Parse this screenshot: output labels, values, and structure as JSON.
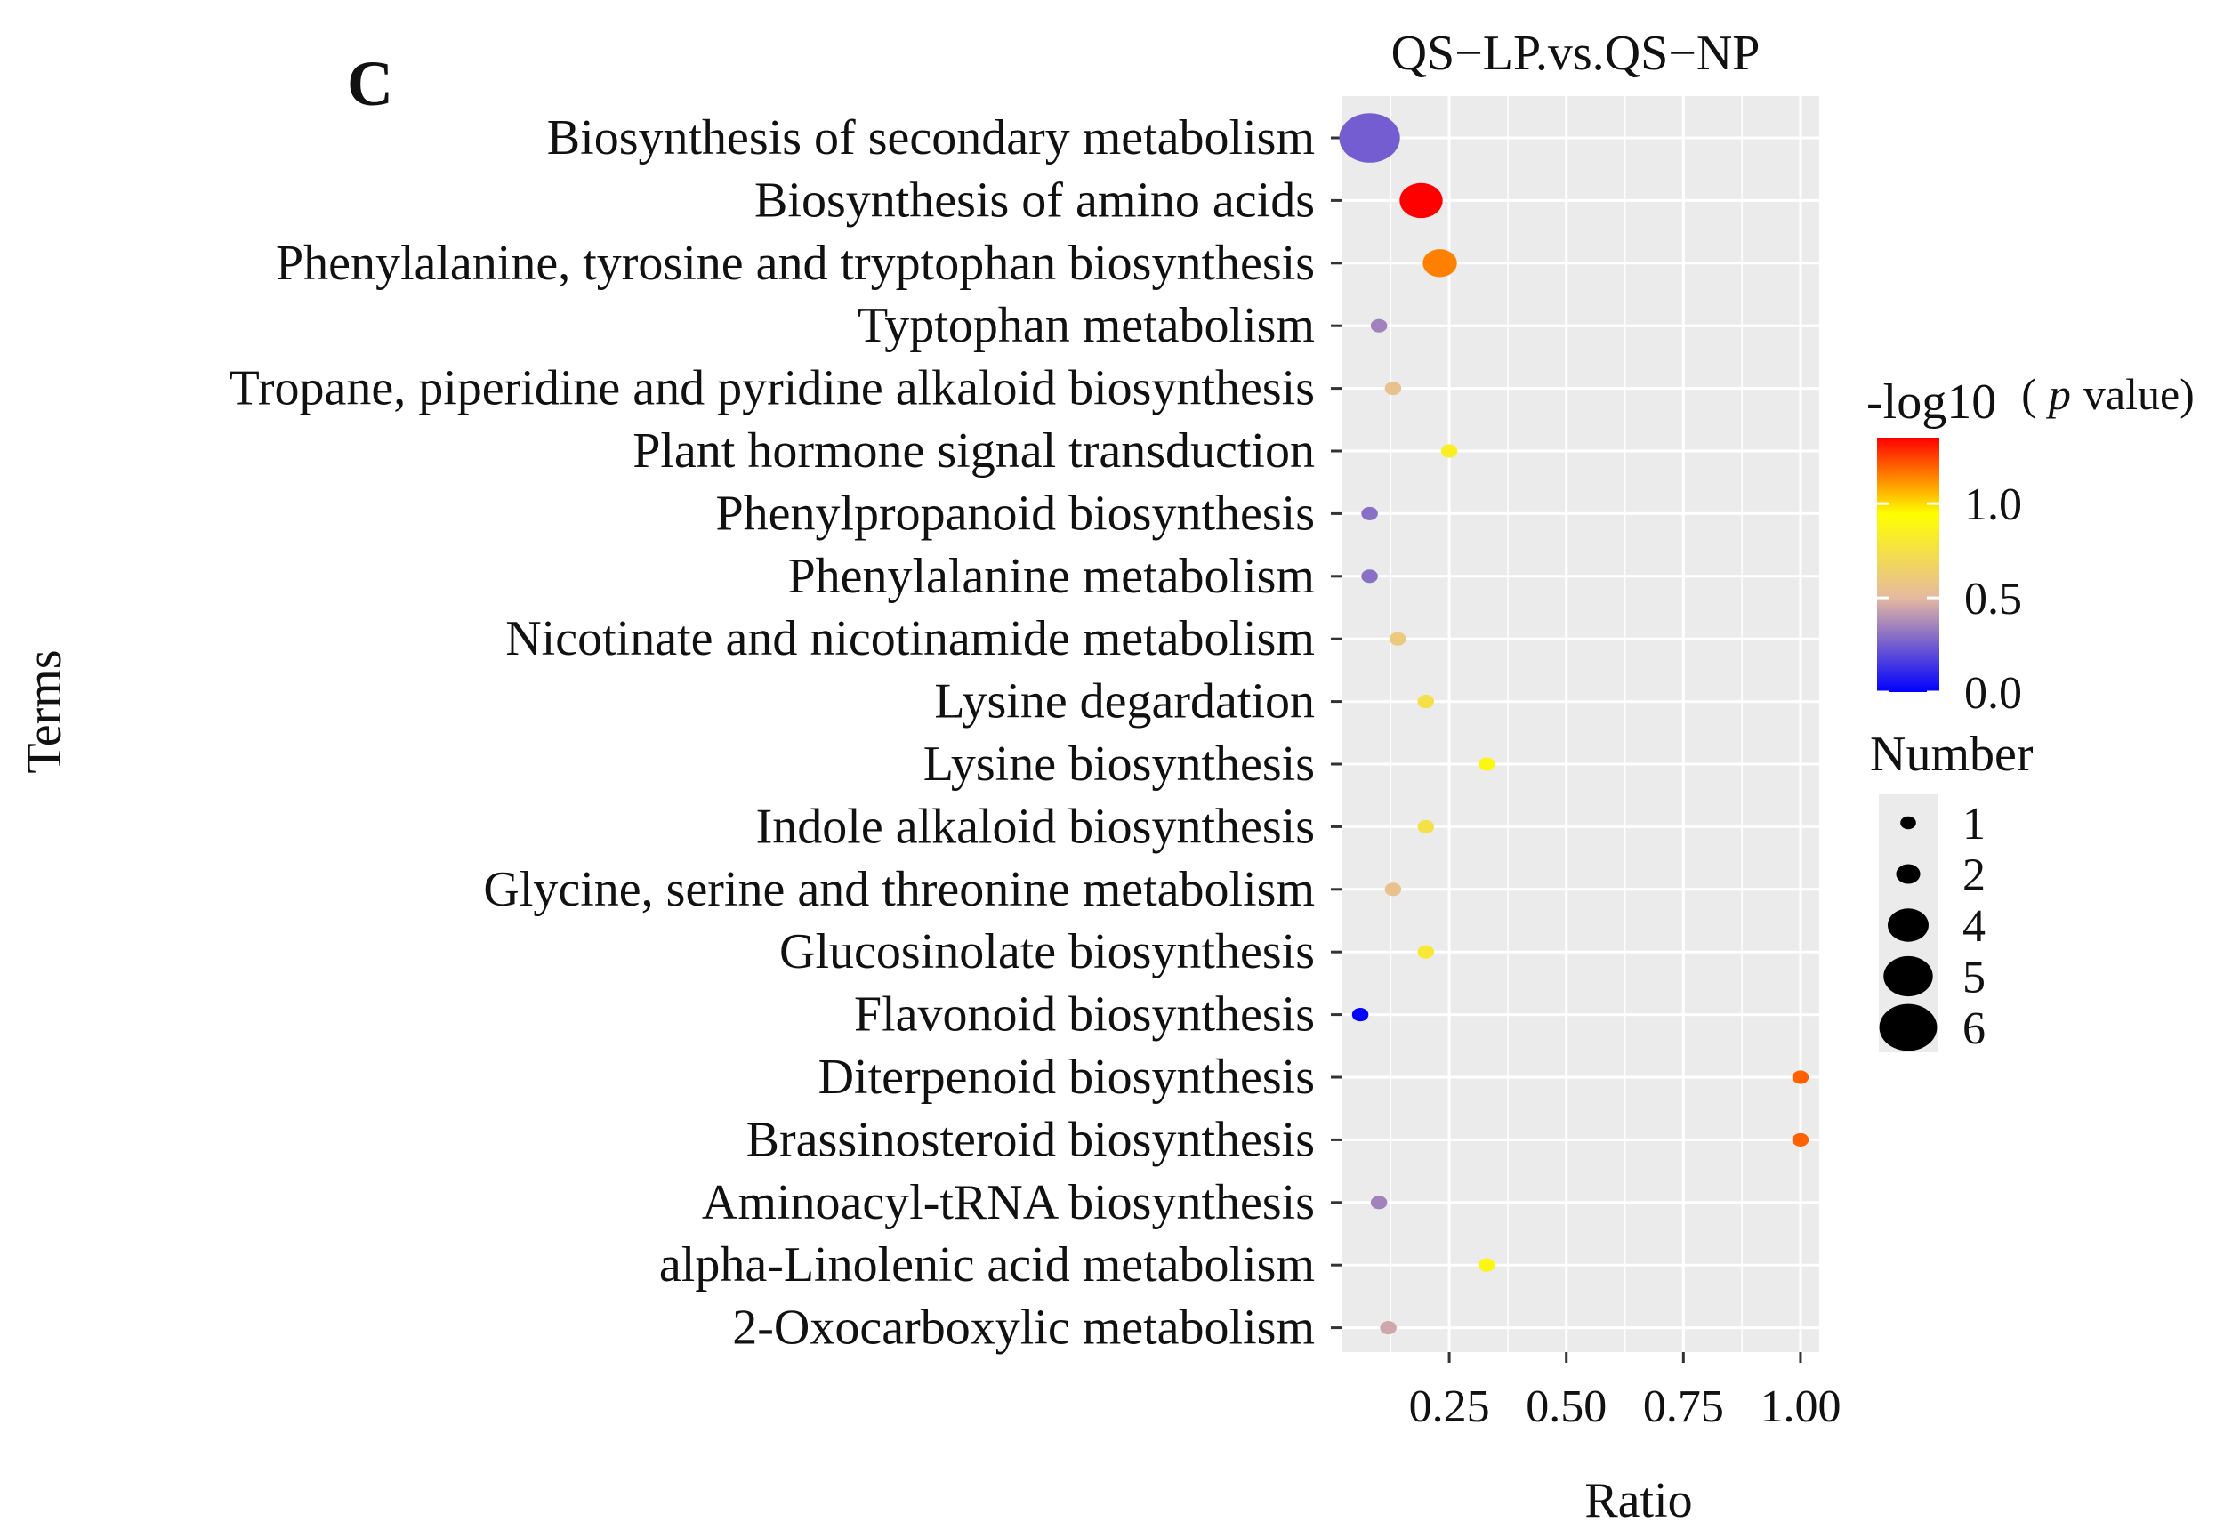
{
  "colors": {
    "panel_bg": "#ebebeb",
    "grid": "#ffffff",
    "low": "#0000ff",
    "mid": "#e6b9a0",
    "mid_high": "#ffff00",
    "high": "#ff0000",
    "legend_dot": "#000000"
  },
  "chart_data": {
    "type": "scatter",
    "panel_label": "C",
    "title": "QS−LP.vs.QS−NP",
    "xlabel": "Ratio",
    "ylabel": "Terms",
    "xlim": [
      0.02,
      1.04
    ],
    "xticks": [
      0.25,
      0.5,
      0.75,
      1.0
    ],
    "xtick_labels": [
      "0.25",
      "0.50",
      "0.75",
      "1.00"
    ],
    "grid": true,
    "color_legend": {
      "title_prefix": "-log10",
      "title_p": "p",
      "title_suffix": " value)",
      "title_open": "(",
      "range": [
        0.0,
        1.35
      ],
      "ticks": [
        0.0,
        0.5,
        1.0
      ],
      "tick_labels": [
        "0.0",
        "0.5",
        "1.0"
      ]
    },
    "size_legend": {
      "title": "Number",
      "values": [
        1,
        2,
        4,
        5,
        6
      ],
      "labels": [
        "1",
        "2",
        "4",
        "5",
        "6"
      ]
    },
    "points": [
      {
        "term": "Biosynthesis of secondary  metabolism",
        "ratio": 0.08,
        "neglog10p": 0.25,
        "number": 6
      },
      {
        "term": "Biosynthesis of amino acids",
        "ratio": 0.19,
        "neglog10p": 1.35,
        "number": 4
      },
      {
        "term": "Phenylalanine, tyrosine and tryptophan  biosynthesis",
        "ratio": 0.23,
        "neglog10p": 1.15,
        "number": 3
      },
      {
        "term": "Typtophan metabolism",
        "ratio": 0.1,
        "neglog10p": 0.35,
        "number": 1
      },
      {
        "term": "Tropane, piperidine and pyridine alkaloid  biosynthesis",
        "ratio": 0.13,
        "neglog10p": 0.55,
        "number": 1
      },
      {
        "term": "Plant hormone signal transduction",
        "ratio": 0.25,
        "neglog10p": 0.85,
        "number": 1
      },
      {
        "term": "Phenylpropanoid biosynthesis",
        "ratio": 0.08,
        "neglog10p": 0.3,
        "number": 1
      },
      {
        "term": "Phenylalanine metabolism",
        "ratio": 0.08,
        "neglog10p": 0.3,
        "number": 1
      },
      {
        "term": "Nicotinate and nicotinamide metabolism",
        "ratio": 0.14,
        "neglog10p": 0.6,
        "number": 1
      },
      {
        "term": "Lysine degardation",
        "ratio": 0.2,
        "neglog10p": 0.75,
        "number": 1
      },
      {
        "term": "Lysine biosynthesis",
        "ratio": 0.33,
        "neglog10p": 0.9,
        "number": 1
      },
      {
        "term": "Indole alkaloid biosynthesis",
        "ratio": 0.2,
        "neglog10p": 0.75,
        "number": 1
      },
      {
        "term": "Glycine, serine and threonine metabolism",
        "ratio": 0.13,
        "neglog10p": 0.55,
        "number": 1
      },
      {
        "term": "Glucosinolate biosynthesis",
        "ratio": 0.2,
        "neglog10p": 0.8,
        "number": 1
      },
      {
        "term": "Flavonoid biosynthesis",
        "ratio": 0.06,
        "neglog10p": 0.0,
        "number": 1
      },
      {
        "term": "Diterpenoid biosynthesis",
        "ratio": 1.0,
        "neglog10p": 1.2,
        "number": 1
      },
      {
        "term": "Brassinosteroid biosynthesis",
        "ratio": 1.0,
        "neglog10p": 1.2,
        "number": 1
      },
      {
        "term": "Aminoacyl-tRNA  biosynthesis",
        "ratio": 0.1,
        "neglog10p": 0.35,
        "number": 1
      },
      {
        "term": "alpha-Linolenic acid metabolism",
        "ratio": 0.33,
        "neglog10p": 0.9,
        "number": 1
      },
      {
        "term": "2-Oxocarboxylic metabolism",
        "ratio": 0.12,
        "neglog10p": 0.45,
        "number": 1
      }
    ]
  }
}
